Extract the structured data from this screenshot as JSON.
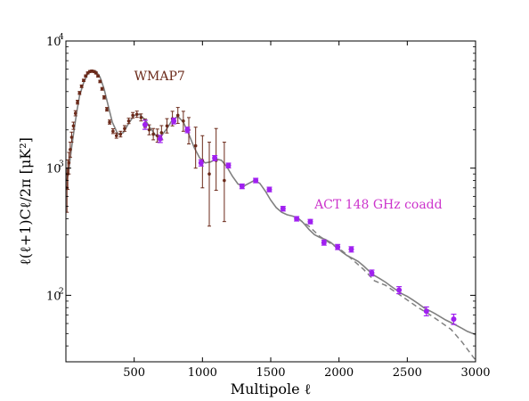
{
  "chart_data": {
    "type": "scatter",
    "title": "",
    "xlabel": "Multipole ℓ",
    "ylabel": "ℓ(ℓ+1)Cℓ/2π [μK²]",
    "xlim": [
      0,
      3000
    ],
    "ylim": [
      30,
      10000
    ],
    "yscale": "log",
    "xticks": [
      500,
      1000,
      1500,
      2000,
      2500,
      3000
    ],
    "xtick_labels": [
      "500",
      "1000",
      "1500",
      "2000",
      "2500",
      "3000"
    ],
    "yticks": [
      100,
      1000,
      10000
    ],
    "ytick_labels": [
      "10",
      "10",
      "10"
    ],
    "ytick_exponents": [
      "2",
      "3",
      "4"
    ],
    "grid": false,
    "annotations": [
      {
        "text": "WMAP7",
        "x": 500,
        "y": 4900,
        "color": "#6b2a1a"
      },
      {
        "text": "ACT 148 GHz coadd",
        "x": 1820,
        "y": 480,
        "color": "#cc33cc"
      }
    ],
    "colors": {
      "model_line": "#808080",
      "wmap": "#6b2a1a",
      "act": "#a020f0"
    },
    "series": [
      {
        "label": "WMAP7",
        "kind": "points_with_errorbars",
        "x": [
          8,
          14,
          22,
          32,
          42,
          55,
          70,
          85,
          100,
          115,
          130,
          145,
          160,
          175,
          190,
          205,
          220,
          235,
          250,
          265,
          280,
          300,
          320,
          345,
          370,
          400,
          430,
          460,
          490,
          520,
          550,
          580,
          610,
          640,
          670,
          700,
          740,
          780,
          820,
          860,
          900,
          950,
          1000,
          1050,
          1100,
          1160
        ],
        "y": [
          700,
          900,
          1100,
          1400,
          1750,
          2150,
          2700,
          3300,
          3900,
          4400,
          4900,
          5300,
          5600,
          5750,
          5800,
          5750,
          5600,
          5300,
          4800,
          4200,
          3600,
          2900,
          2300,
          1950,
          1800,
          1850,
          2050,
          2350,
          2600,
          2650,
          2500,
          2250,
          2000,
          1850,
          1800,
          1900,
          2150,
          2450,
          2600,
          2350,
          2000,
          1500,
          1150,
          900,
          1150,
          800
        ],
        "err_lo": [
          250,
          220,
          200,
          180,
          150,
          130,
          120,
          110,
          100,
          100,
          100,
          100,
          100,
          100,
          100,
          100,
          100,
          100,
          100,
          100,
          100,
          90,
          80,
          80,
          80,
          90,
          100,
          110,
          120,
          140,
          150,
          160,
          170,
          180,
          200,
          230,
          260,
          300,
          350,
          400,
          450,
          500,
          450,
          550,
          480,
          420
        ],
        "err_hi": [
          300,
          260,
          230,
          200,
          170,
          150,
          130,
          120,
          110,
          110,
          110,
          110,
          110,
          110,
          110,
          110,
          110,
          110,
          110,
          110,
          110,
          100,
          90,
          90,
          90,
          100,
          110,
          120,
          140,
          160,
          170,
          180,
          190,
          200,
          230,
          260,
          300,
          350,
          400,
          450,
          500,
          600,
          650,
          700,
          900,
          800
        ]
      },
      {
        "label": "ACT 148 GHz coadd",
        "kind": "points_with_errorbars",
        "x": [
          580,
          690,
          790,
          890,
          990,
          1090,
          1190,
          1290,
          1390,
          1490,
          1590,
          1690,
          1790,
          1890,
          1990,
          2090,
          2240,
          2440,
          2640,
          2840
        ],
        "y": [
          2200,
          1700,
          2350,
          2000,
          1100,
          1200,
          1050,
          720,
          800,
          680,
          480,
          400,
          380,
          260,
          240,
          230,
          150,
          110,
          75,
          65
        ],
        "err": [
          180,
          110,
          120,
          100,
          60,
          55,
          45,
          30,
          32,
          28,
          20,
          16,
          15,
          12,
          11,
          11,
          8,
          7,
          6,
          6
        ]
      },
      {
        "label": "",
        "kind": "model_line_solid",
        "x": [
          2,
          10,
          20,
          40,
          60,
          80,
          100,
          130,
          160,
          190,
          220,
          250,
          280,
          310,
          340,
          380,
          420,
          460,
          500,
          540,
          580,
          620,
          660,
          700,
          740,
          780,
          820,
          860,
          900,
          940,
          980,
          1020,
          1060,
          1100,
          1140,
          1180,
          1220,
          1260,
          1300,
          1340,
          1380,
          1420,
          1460,
          1500,
          1540,
          1580,
          1620,
          1660,
          1700,
          1740,
          1780,
          1820,
          1860,
          1900,
          1940,
          1980,
          2020,
          2060,
          2100,
          2140,
          2180,
          2220,
          2260,
          2300,
          2340,
          2380,
          2420,
          2460,
          2500,
          2540,
          2580,
          2620,
          2660,
          2700,
          2740,
          2780,
          2820,
          2860,
          2900,
          2940,
          2980,
          3000
        ],
        "y": [
          800,
          820,
          950,
          1400,
          2000,
          2800,
          3700,
          4700,
          5500,
          5850,
          5800,
          5200,
          4200,
          3100,
          2300,
          1850,
          1900,
          2250,
          2600,
          2650,
          2400,
          2050,
          1800,
          1800,
          2050,
          2400,
          2550,
          2300,
          1850,
          1450,
          1200,
          1100,
          1120,
          1180,
          1150,
          1020,
          860,
          750,
          720,
          760,
          800,
          760,
          660,
          560,
          490,
          450,
          430,
          420,
          405,
          370,
          330,
          300,
          285,
          275,
          260,
          240,
          220,
          205,
          195,
          185,
          170,
          155,
          143,
          135,
          127,
          118,
          110,
          103,
          98,
          92,
          86,
          80,
          76,
          72,
          68,
          64,
          61,
          58,
          55,
          52,
          50,
          49
        ]
      },
      {
        "label": "",
        "kind": "model_line_dashed",
        "x": [
          1700,
          1780,
          1860,
          1940,
          2020,
          2100,
          2180,
          2260,
          2340,
          2420,
          2500,
          2580,
          2660,
          2740,
          2820,
          2900,
          2980,
          3000
        ],
        "y": [
          400,
          350,
          290,
          255,
          225,
          190,
          160,
          130,
          120,
          105,
          92,
          80,
          71,
          62,
          54,
          43,
          33,
          31
        ]
      }
    ]
  }
}
